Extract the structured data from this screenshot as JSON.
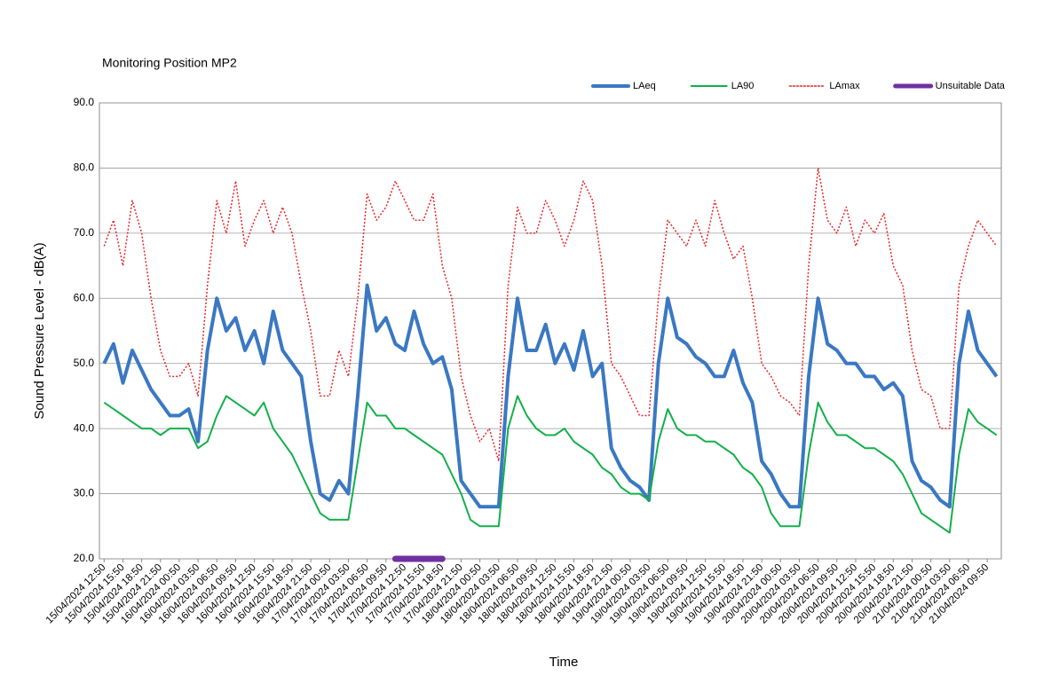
{
  "chart_data": {
    "type": "line",
    "title": "Monitoring Position MP2",
    "x_label": "Time",
    "y_label": "Sound Pressure Level -  dB(A)",
    "categories": [
      "15/04/2024 12:50",
      null,
      "15/04/2024 15:50",
      null,
      "15/04/2024 18:50",
      null,
      "15/04/2024 21:50",
      null,
      "16/04/2024 00:50",
      null,
      "16/04/2024 03:50",
      null,
      "16/04/2024 06:50",
      null,
      "16/04/2024 09:50",
      null,
      "16/04/2024 12:50",
      null,
      "16/04/2024 15:50",
      null,
      "16/04/2024 18:50",
      null,
      "16/04/2024 21:50",
      null,
      "17/04/2024 00:50",
      null,
      "17/04/2024 03:50",
      null,
      "17/04/2024 06:50",
      null,
      "17/04/2024 09:50",
      null,
      "17/04/2024 12:50",
      null,
      "17/04/2024 15:50",
      null,
      "17/04/2024 18:50",
      null,
      "17/04/2024 21:50",
      null,
      "18/04/2024 00:50",
      null,
      "18/04/2024 03:50",
      null,
      "18/04/2024 06:50",
      null,
      "18/04/2024 09:50",
      null,
      "18/04/2024 12:50",
      null,
      "18/04/2024 15:50",
      null,
      "18/04/2024 18:50",
      null,
      "18/04/2024 21:50",
      null,
      "19/04/2024 00:50",
      null,
      "19/04/2024 03:50",
      null,
      "19/04/2024 06:50",
      null,
      "19/04/2024 09:50",
      null,
      "19/04/2024 12:50",
      null,
      "19/04/2024 15:50",
      null,
      "19/04/2024 18:50",
      null,
      "19/04/2024 21:50",
      null,
      "20/04/2024 00:50",
      null,
      "20/04/2024 03:50",
      null,
      "20/04/2024 06:50",
      null,
      "20/04/2024 09:50",
      null,
      "20/04/2024 12:50",
      null,
      "20/04/2024 15:50",
      null,
      "20/04/2024 18:50",
      null,
      "20/04/2024 21:50",
      null,
      "21/04/2024 00:50",
      null,
      "21/04/2024 03:50",
      null,
      "21/04/2024 06:50",
      null,
      "21/04/2024 09:50",
      null
    ],
    "series": [
      {
        "name": "LAmax",
        "color": "#e8262a",
        "style": "dotted",
        "linewidth": 1.5,
        "values": [
          68,
          72,
          65,
          75,
          70,
          60,
          52,
          48,
          48,
          50,
          45,
          62,
          75,
          70,
          78,
          68,
          72,
          75,
          70,
          74,
          70,
          62,
          55,
          45,
          45,
          52,
          48,
          60,
          76,
          72,
          74,
          78,
          75,
          72,
          72,
          76,
          65,
          60,
          48,
          42,
          38,
          40,
          35,
          62,
          74,
          70,
          70,
          75,
          72,
          68,
          72,
          78,
          75,
          65,
          50,
          48,
          45,
          42,
          42,
          60,
          72,
          70,
          68,
          72,
          68,
          75,
          70,
          66,
          68,
          60,
          50,
          48,
          45,
          44,
          42,
          65,
          80,
          72,
          70,
          74,
          68,
          72,
          70,
          73,
          65,
          62,
          52,
          46,
          45,
          40,
          40,
          62,
          68,
          72,
          70,
          68
        ]
      },
      {
        "name": "LAeq",
        "color": "#3a78c2",
        "style": "solid",
        "linewidth": 4,
        "values": [
          50,
          53,
          47,
          52,
          49,
          46,
          44,
          42,
          42,
          43,
          38,
          52,
          60,
          55,
          57,
          52,
          55,
          50,
          58,
          52,
          50,
          48,
          38,
          30,
          29,
          32,
          30,
          45,
          62,
          55,
          57,
          53,
          52,
          58,
          53,
          50,
          51,
          46,
          32,
          30,
          28,
          28,
          28,
          48,
          60,
          52,
          52,
          56,
          50,
          53,
          49,
          55,
          48,
          50,
          37,
          34,
          32,
          31,
          29,
          50,
          60,
          54,
          53,
          51,
          50,
          48,
          48,
          52,
          47,
          44,
          35,
          33,
          30,
          28,
          28,
          48,
          60,
          53,
          52,
          50,
          50,
          48,
          48,
          46,
          47,
          45,
          35,
          32,
          31,
          29,
          28,
          50,
          58,
          52,
          50,
          48
        ]
      },
      {
        "name": "LA90",
        "color": "#12b04a",
        "style": "solid",
        "linewidth": 2,
        "values": [
          44,
          43,
          42,
          41,
          40,
          40,
          39,
          40,
          40,
          40,
          37,
          38,
          42,
          45,
          44,
          43,
          42,
          44,
          40,
          38,
          36,
          33,
          30,
          27,
          26,
          26,
          26,
          35,
          44,
          42,
          42,
          40,
          40,
          39,
          38,
          37,
          36,
          33,
          30,
          26,
          25,
          25,
          25,
          40,
          45,
          42,
          40,
          39,
          39,
          40,
          38,
          37,
          36,
          34,
          33,
          31,
          30,
          30,
          29,
          38,
          43,
          40,
          39,
          39,
          38,
          38,
          37,
          36,
          34,
          33,
          31,
          27,
          25,
          25,
          25,
          36,
          44,
          41,
          39,
          39,
          38,
          37,
          37,
          36,
          35,
          33,
          30,
          27,
          26,
          25,
          24,
          36,
          43,
          41,
          40,
          39
        ]
      },
      {
        "name": "Unsuitable Data",
        "color": "#7030a0",
        "style": "solid",
        "linewidth": 7,
        "values": [
          null,
          null,
          null,
          null,
          null,
          null,
          null,
          null,
          null,
          null,
          null,
          null,
          null,
          null,
          null,
          null,
          null,
          null,
          null,
          null,
          null,
          null,
          null,
          null,
          null,
          null,
          null,
          null,
          null,
          null,
          null,
          20,
          20,
          20,
          20,
          20,
          20,
          null,
          null,
          null,
          null,
          null,
          null,
          null,
          null,
          null,
          null,
          null,
          null,
          null,
          null,
          null,
          null,
          null,
          null,
          null,
          null,
          null,
          null,
          null,
          null,
          null,
          null,
          null,
          null,
          null,
          null,
          null,
          null,
          null,
          null,
          null,
          null,
          null,
          null,
          null,
          null,
          null,
          null,
          null,
          null,
          null,
          null,
          null,
          null,
          null,
          null,
          null,
          null,
          null,
          null,
          null,
          null,
          null,
          null,
          null
        ]
      }
    ],
    "legend_order": [
      1,
      2,
      0,
      3
    ],
    "ylim": [
      20,
      90
    ],
    "yticks": [
      {
        "value": 20,
        "label": "20.0"
      },
      {
        "value": 30,
        "label": "30.0"
      },
      {
        "value": 40,
        "label": "40.0"
      },
      {
        "value": 50,
        "label": "50.0"
      },
      {
        "value": 60,
        "label": "60.0"
      },
      {
        "value": 70,
        "label": "70.0"
      },
      {
        "value": 80,
        "label": "80.0"
      },
      {
        "value": 90,
        "label": "90.0"
      }
    ],
    "grid": true,
    "legend": "top-right"
  }
}
